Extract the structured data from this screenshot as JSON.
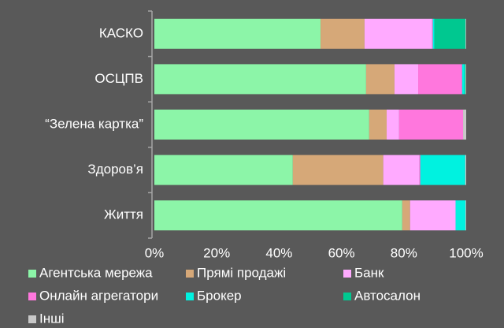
{
  "chart_data": {
    "type": "stacked-bar-horizontal",
    "categories": [
      "КАСКО",
      "ОСЦПВ",
      "“Зелена картка”",
      "Здоров’я",
      "Життя"
    ],
    "series": [
      {
        "name": "Агентська мережа",
        "color": "#8cf5a8",
        "values": [
          53.3,
          67.9,
          68.9,
          44.4,
          79.5
        ]
      },
      {
        "name": "Прямі продажі",
        "color": "#d6a878",
        "values": [
          14.1,
          9.1,
          5.6,
          29.0,
          2.5
        ]
      },
      {
        "name": "Банк",
        "color": "#ffaaff",
        "values": [
          21.7,
          7.6,
          4.0,
          11.6,
          14.6
        ]
      },
      {
        "name": "Онлайн агрегатори",
        "color": "#ff77dd",
        "values": [
          0.2,
          14.1,
          20.5,
          0.3,
          0
        ]
      },
      {
        "name": "Брокер",
        "color": "#00f2e0",
        "values": [
          0.5,
          0.8,
          0,
          14.4,
          3.2
        ]
      },
      {
        "name": "Автосалон",
        "color": "#00c890",
        "values": [
          10.0,
          0.3,
          0,
          0,
          0
        ]
      },
      {
        "name": "Інші",
        "color": "#c8c8c8",
        "values": [
          0.2,
          0.2,
          1.0,
          0.3,
          0.2
        ]
      }
    ],
    "xlim": [
      0,
      100
    ],
    "xticks": [
      {
        "value": 0,
        "label": "0%"
      },
      {
        "value": 20,
        "label": "20%"
      },
      {
        "value": 40,
        "label": "40%"
      },
      {
        "value": 60,
        "label": "60%"
      },
      {
        "value": 80,
        "label": "80%"
      },
      {
        "value": 100,
        "label": "100%"
      }
    ]
  }
}
